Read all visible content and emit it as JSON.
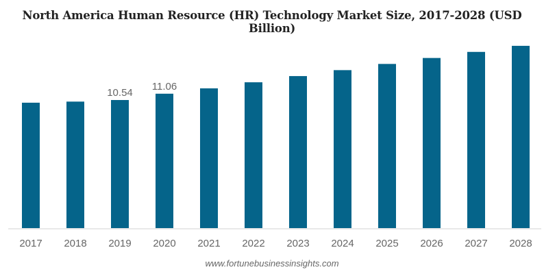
{
  "chart_data": {
    "type": "bar",
    "title": "North America Human Resource (HR) Technology Market Size, 2017-2028 (USD Billion)",
    "xlabel": "",
    "ylabel": "",
    "categories": [
      "2017",
      "2018",
      "2019",
      "2020",
      "2021",
      "2022",
      "2023",
      "2024",
      "2025",
      "2026",
      "2027",
      "2028"
    ],
    "values": [
      10.32,
      10.41,
      10.54,
      11.06,
      11.5,
      12.0,
      12.51,
      13.0,
      13.51,
      14.0,
      14.5,
      15.0
    ],
    "data_labels": {
      "2019": "10.54",
      "2020": "11.06"
    },
    "ylim": [
      0,
      15.3
    ],
    "grid": false,
    "bar_color": "#05648a",
    "source": "www.fortunebusinessinsights.com"
  }
}
